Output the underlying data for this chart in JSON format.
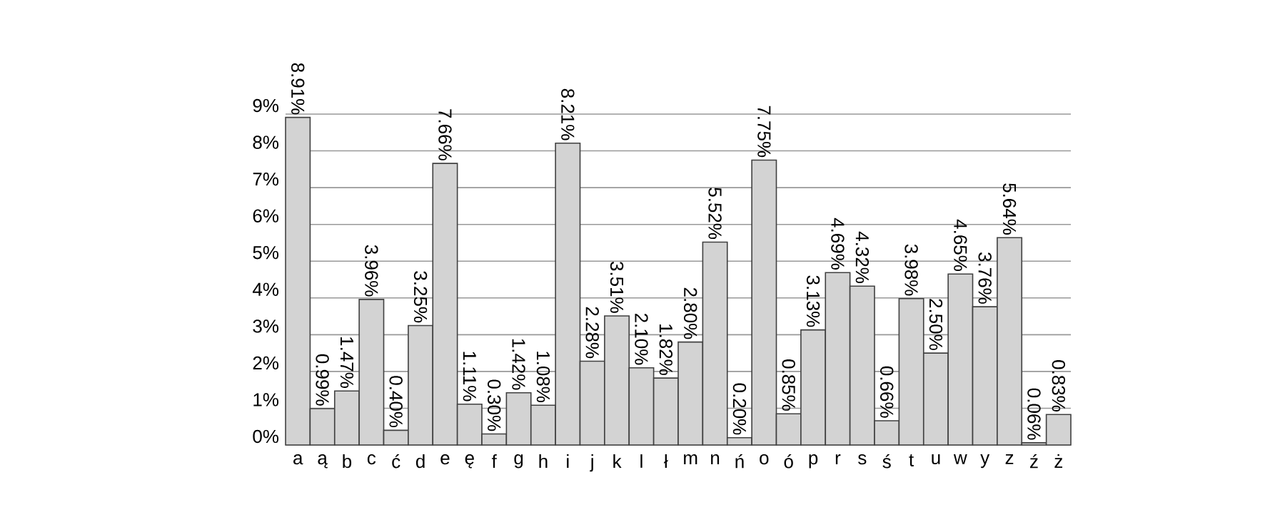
{
  "chart_data": {
    "type": "bar",
    "categories": [
      "a",
      "ą",
      "b",
      "c",
      "ć",
      "d",
      "e",
      "ę",
      "f",
      "g",
      "h",
      "i",
      "j",
      "k",
      "l",
      "ł",
      "m",
      "n",
      "ń",
      "o",
      "ó",
      "p",
      "r",
      "s",
      "ś",
      "t",
      "u",
      "w",
      "y",
      "z",
      "ź",
      "ż"
    ],
    "values": [
      8.91,
      0.99,
      1.47,
      3.96,
      0.4,
      3.25,
      7.66,
      1.11,
      0.3,
      1.42,
      1.08,
      8.21,
      2.28,
      3.51,
      2.1,
      1.82,
      2.8,
      5.52,
      0.2,
      7.75,
      0.85,
      3.13,
      4.69,
      4.32,
      0.66,
      3.98,
      2.5,
      4.65,
      3.76,
      5.64,
      0.06,
      0.83
    ],
    "value_labels": [
      "8.91%",
      "0.99%",
      "1.47%",
      "3.96%",
      "0.40%",
      "3.25%",
      "7.66%",
      "1.11%",
      "0.30%",
      "1.42%",
      "1.08%",
      "8.21%",
      "2.28%",
      "3.51%",
      "2.10%",
      "1.82%",
      "2.80%",
      "5.52%",
      "0.20%",
      "7.75%",
      "0.85%",
      "3.13%",
      "4.69%",
      "4.32%",
      "0.66%",
      "3.98%",
      "2.50%",
      "4.65%",
      "3.76%",
      "5.64%",
      "0.06%",
      "0.83%"
    ],
    "color": "#d3d3d3",
    "ylim": [
      0,
      9
    ],
    "yticks": [
      {
        "value": 0,
        "label": "0%"
      },
      {
        "value": 1,
        "label": "1%"
      },
      {
        "value": 2,
        "label": "2%"
      },
      {
        "value": 3,
        "label": "3%"
      },
      {
        "value": 4,
        "label": "4%"
      },
      {
        "value": 5,
        "label": "5%"
      },
      {
        "value": 6,
        "label": "6%"
      },
      {
        "value": 7,
        "label": "7%"
      },
      {
        "value": 8,
        "label": "8%"
      },
      {
        "value": 9,
        "label": "9%"
      }
    ],
    "grid": "y"
  }
}
